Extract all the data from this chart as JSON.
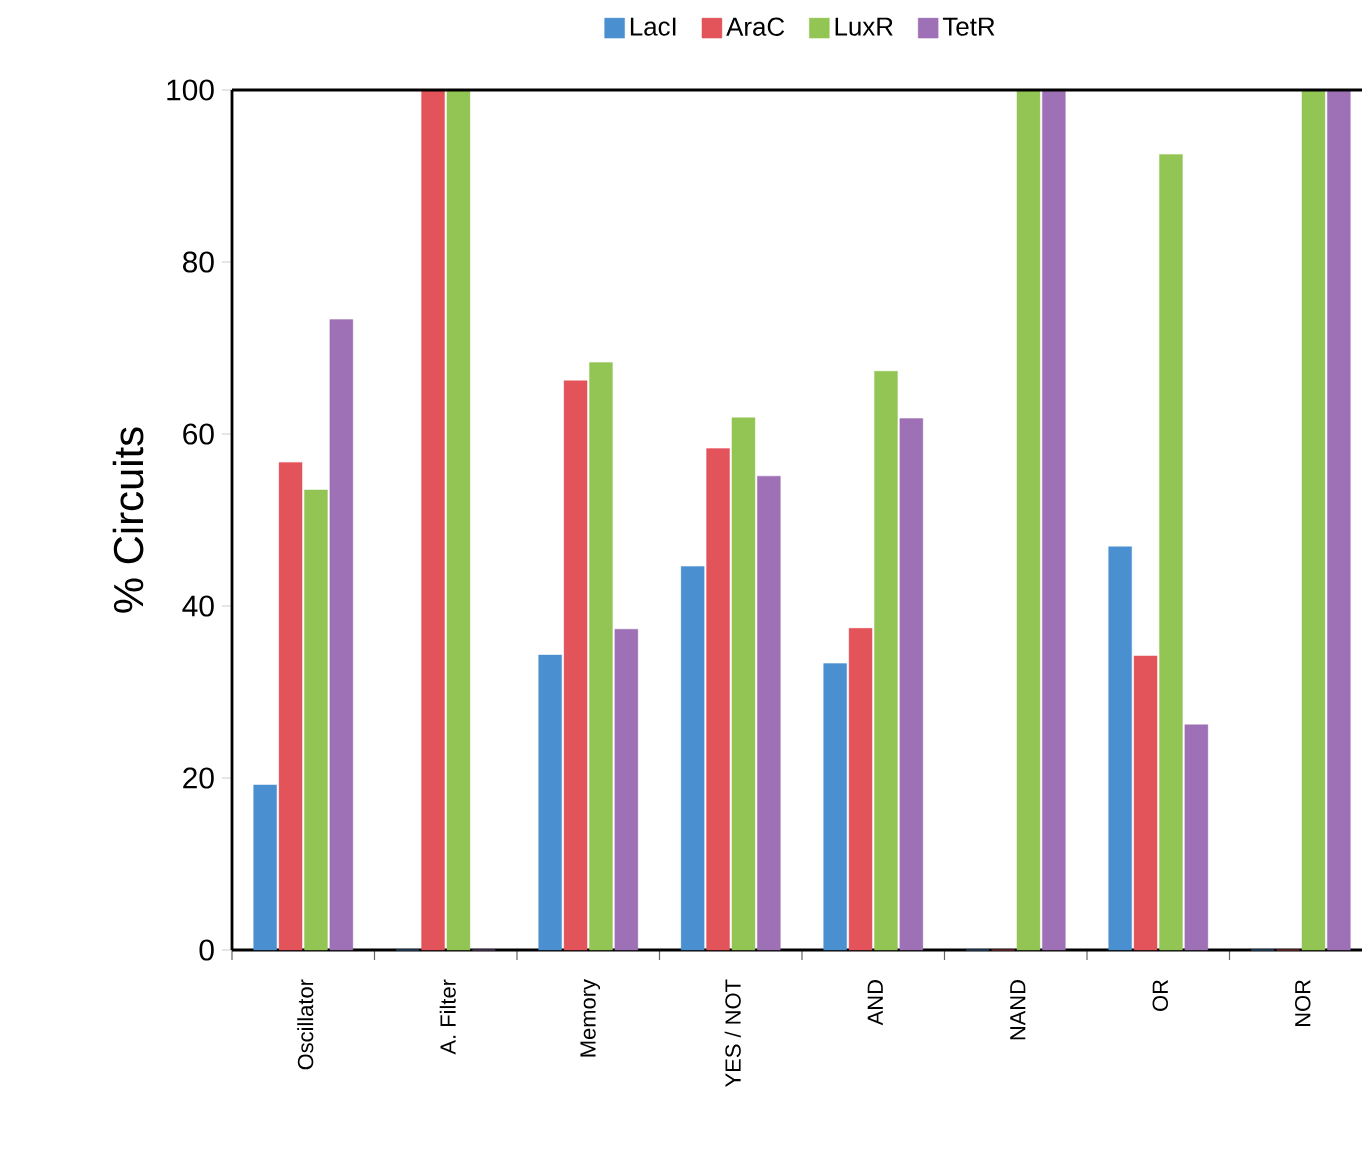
{
  "chart_data": {
    "type": "bar",
    "ylabel": "% Circuits",
    "categories": [
      "Oscillator",
      "A. Filter",
      "Memory",
      "YES / NOT",
      "AND",
      "NAND",
      "OR",
      "NOR"
    ],
    "series": [
      {
        "name": "LacI",
        "color": "#4a90d0",
        "values": [
          19.2,
          0,
          34.3,
          44.6,
          33.3,
          0,
          46.9,
          0
        ]
      },
      {
        "name": "AraC",
        "color": "#e3535a",
        "values": [
          56.7,
          100,
          66.2,
          58.3,
          37.4,
          0,
          34.2,
          0
        ]
      },
      {
        "name": "LuxR",
        "color": "#92c553",
        "values": [
          53.5,
          100,
          68.3,
          61.9,
          67.3,
          100,
          92.5,
          100
        ]
      },
      {
        "name": "TetR",
        "color": "#9e70b5",
        "values": [
          73.3,
          0,
          37.3,
          55.1,
          61.8,
          100,
          26.2,
          100
        ]
      }
    ],
    "ylim": [
      0,
      100
    ],
    "yticks": [
      0,
      20,
      40,
      60,
      80,
      100
    ],
    "grid": false,
    "legend": "top"
  }
}
